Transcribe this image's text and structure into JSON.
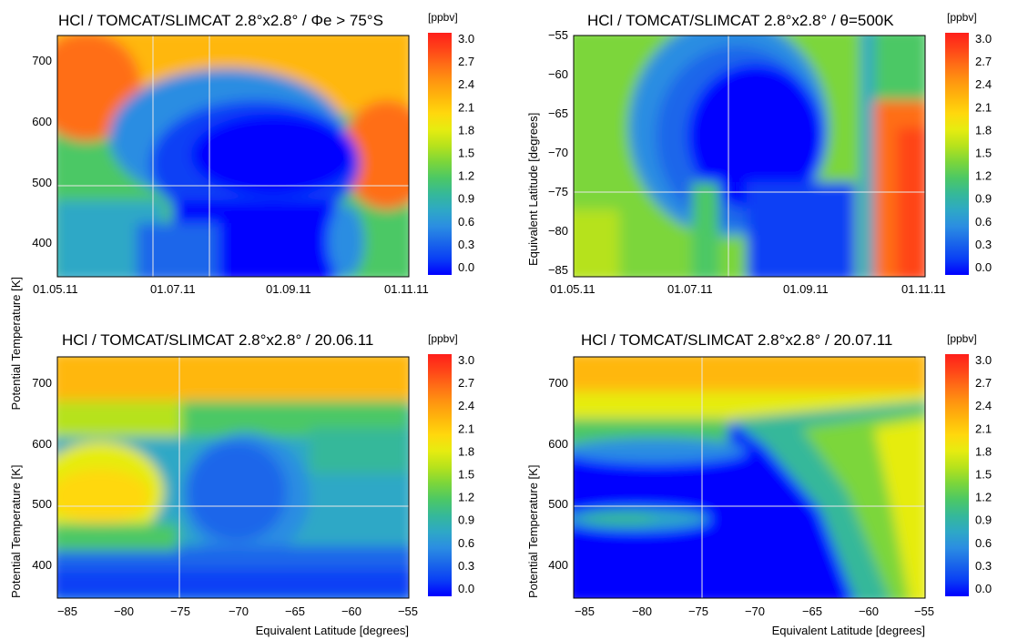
{
  "colors": {
    "colormap": [
      "#0000ff",
      "#0a3ff5",
      "#1a66ea",
      "#2b8de2",
      "#2ea8c6",
      "#35b89a",
      "#4cc865",
      "#7cd63a",
      "#b6e21c",
      "#e6ec10",
      "#ffd80d",
      "#ffb70c",
      "#ff9610",
      "#ff6e16",
      "#ff4418",
      "#ff1f1a"
    ],
    "grid": "#e8e8e8",
    "frame": "#000000"
  },
  "chart_data": [
    {
      "type": "heatmap",
      "title": "HCl / TOMCAT/SLIMCAT  2.8°x2.8° / Φe > 75°S",
      "xlabel": "",
      "ylabel": "Potential Temperature [K]",
      "x_tick_labels": [
        "01.05.11",
        "01.07.11",
        "01.09.11",
        "01.11.11"
      ],
      "y_tick_labels": [
        "400",
        "500",
        "600",
        "700"
      ],
      "xlim": [
        "01.05.11",
        "01.11.11"
      ],
      "ylim": [
        350,
        745
      ],
      "colorbar": {
        "label": "[ppbv]",
        "min": 0.0,
        "max": 3.0,
        "ticks": [
          "0.0",
          "0.3",
          "0.6",
          "0.9",
          "1.2",
          "1.5",
          "1.8",
          "2.1",
          "2.4",
          "2.7",
          "3.0"
        ]
      },
      "description": "HCl mixing ratio vs time and potential temperature; high (~2.5-3.0 ppbv) at upper levels in May and October, strongly depleted (~0.0-0.3 ppbv) from July to September below ~650 K"
    },
    {
      "type": "heatmap",
      "title": "HCl / TOMCAT/SLIMCAT  2.8°x2.8° / θ=500K",
      "xlabel": "",
      "ylabel": "Equivalent Latitude [degrees]",
      "x_tick_labels": [
        "01.05.11",
        "01.07.11",
        "01.09.11",
        "01.11.11"
      ],
      "y_tick_labels": [
        "−55",
        "−60",
        "−65",
        "−70",
        "−75",
        "−80",
        "−85"
      ],
      "xlim": [
        "01.05.11",
        "01.11.11"
      ],
      "ylim": [
        -85.5,
        -55
      ],
      "colorbar": {
        "label": "[ppbv]",
        "min": 0.0,
        "max": 3.0,
        "ticks": [
          "0.0",
          "0.3",
          "0.6",
          "0.9",
          "1.2",
          "1.5",
          "1.8",
          "2.1",
          "2.4",
          "2.7",
          "3.0"
        ]
      },
      "description": "HCl at 500 K vs time and equivalent latitude; depleted region (~0.0-0.3 ppbv) poleward of -60 from late June to late September, recovery to ~2.5-3.0 ppbv in October"
    },
    {
      "type": "heatmap",
      "title": "HCl / TOMCAT/SLIMCAT  2.8°x2.8° / 20.06.11",
      "xlabel": "Equivalent Latitude [degrees]",
      "ylabel": "Potential Temperature [K]",
      "x_tick_labels": [
        "−85",
        "−80",
        "−75",
        "−70",
        "−65",
        "−60",
        "−55"
      ],
      "y_tick_labels": [
        "400",
        "500",
        "600",
        "700"
      ],
      "xlim": [
        -86,
        -55
      ],
      "ylim": [
        350,
        745
      ],
      "colorbar": {
        "label": "[ppbv]",
        "min": 0.0,
        "max": 3.0,
        "ticks": [
          "0.0",
          "0.3",
          "0.6",
          "0.9",
          "1.2",
          "1.5",
          "1.8",
          "2.1",
          "2.4",
          "2.7",
          "3.0"
        ]
      },
      "description": "HCl on 20 June 2011; depleted pocket (~0.3-0.6 ppbv) between -75 and -65 at 500-620 K, higher values (~1.5-1.8 ppbv) near the pole at 550 K and ~2.5 ppbv at top"
    },
    {
      "type": "heatmap",
      "title": "HCl / TOMCAT/SLIMCAT  2.8°x2.8° / 20.07.11",
      "xlabel": "Equivalent Latitude [degrees]",
      "ylabel": "Potential Temperature [K]",
      "x_tick_labels": [
        "−85",
        "−80",
        "−75",
        "−70",
        "−65",
        "−60",
        "−55"
      ],
      "y_tick_labels": [
        "400",
        "500",
        "600",
        "700"
      ],
      "xlim": [
        -86,
        -55
      ],
      "ylim": [
        350,
        745
      ],
      "colorbar": {
        "label": "[ppbv]",
        "min": 0.0,
        "max": 3.0,
        "ticks": [
          "0.0",
          "0.3",
          "0.6",
          "0.9",
          "1.2",
          "1.5",
          "1.8",
          "2.1",
          "2.4",
          "2.7",
          "3.0"
        ]
      },
      "description": "HCl on 20 July 2011; vortex strongly depleted (~0.0-0.3 ppbv) poleward of -62 below ~640 K, values increase toward the top and equatorward edge (~2.4 ppbv)"
    }
  ]
}
